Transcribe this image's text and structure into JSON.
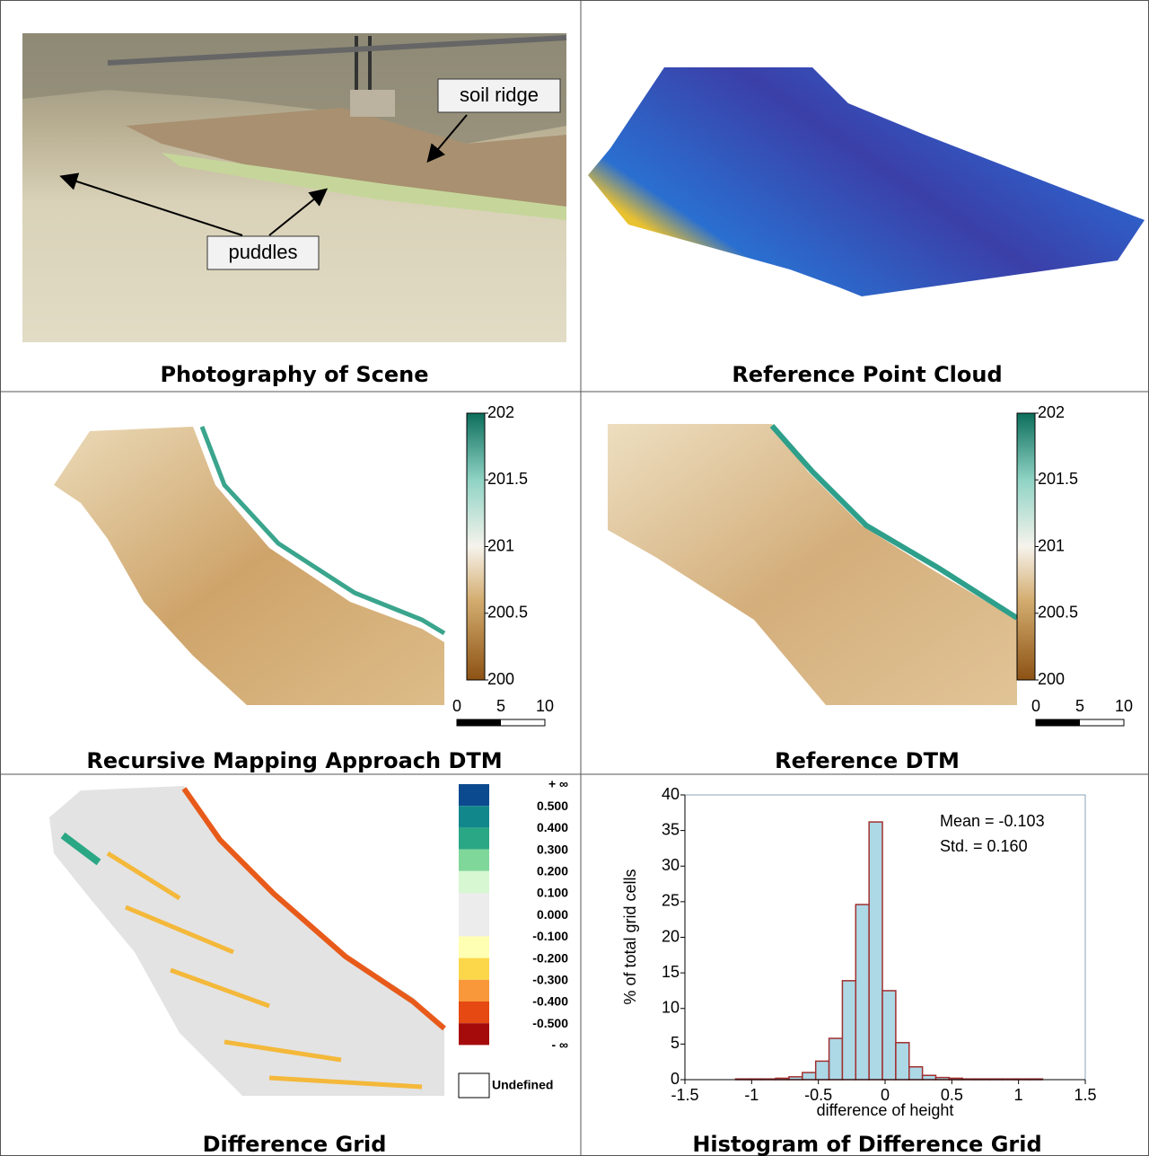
{
  "panels": [
    {
      "caption": "Photography of Scene",
      "annotations": [
        "soil ridge",
        "puddles"
      ]
    },
    {
      "caption": "Reference Point Cloud"
    },
    {
      "caption": "Recursive Mapping Approach DTM",
      "colorbar_ticks": [
        200,
        200.5,
        201,
        201.5,
        202
      ],
      "scalebar": [
        0,
        5,
        10
      ]
    },
    {
      "caption": "Reference DTM",
      "colorbar_ticks": [
        200,
        200.5,
        201,
        201.5,
        202
      ],
      "scalebar": [
        0,
        5,
        10
      ]
    },
    {
      "caption": "Difference Grid",
      "legend_labels": [
        "+ ∞",
        "0.500",
        "0.400",
        "0.300",
        "0.200",
        "0.100",
        "0.000",
        "-0.100",
        "-0.200",
        "-0.300",
        "-0.400",
        "-0.500",
        "- ∞"
      ],
      "legend_colors": [
        "#0b4a8e",
        "#12878b",
        "#2aa784",
        "#80d79a",
        "#d6f7d2",
        "#ececec",
        "#ececec",
        "#ffffb3",
        "#fcd74a",
        "#f8983a",
        "#e64912",
        "#a50b0b"
      ],
      "undefined_label": "Undefined"
    }
  ],
  "chart_data": {
    "type": "histogram",
    "title": "Histogram of Difference Grid",
    "x_label": "difference of height",
    "y_label": "% of total grid cells",
    "annotations": [
      "Mean = -0.103",
      "Std. = 0.160"
    ],
    "bins": [
      -1.12,
      -1.02,
      -0.92,
      -0.82,
      -0.72,
      -0.62,
      -0.52,
      -0.42,
      -0.32,
      -0.22,
      -0.12,
      -0.02,
      0.08,
      0.18,
      0.28,
      0.38,
      0.48,
      0.58,
      0.68,
      0.78,
      0.88,
      0.98,
      1.08,
      1.18
    ],
    "values": [
      0.1,
      0.1,
      0.1,
      0.2,
      0.4,
      1.0,
      2.6,
      5.8,
      13.9,
      24.6,
      36.2,
      12.5,
      5.2,
      1.8,
      0.6,
      0.3,
      0.2,
      0.1,
      0.1,
      0.1,
      0.1,
      0.1,
      0.1
    ],
    "color": "#add8e6",
    "edge_color": "#a03030",
    "xlim": [
      -1.5,
      1.5
    ],
    "xticks": [
      -1.5,
      -1,
      -0.5,
      0,
      0.5,
      1,
      1.5
    ],
    "ylim": [
      0,
      40
    ],
    "yticks": [
      0,
      5,
      10,
      15,
      20,
      25,
      30,
      35,
      40
    ]
  }
}
